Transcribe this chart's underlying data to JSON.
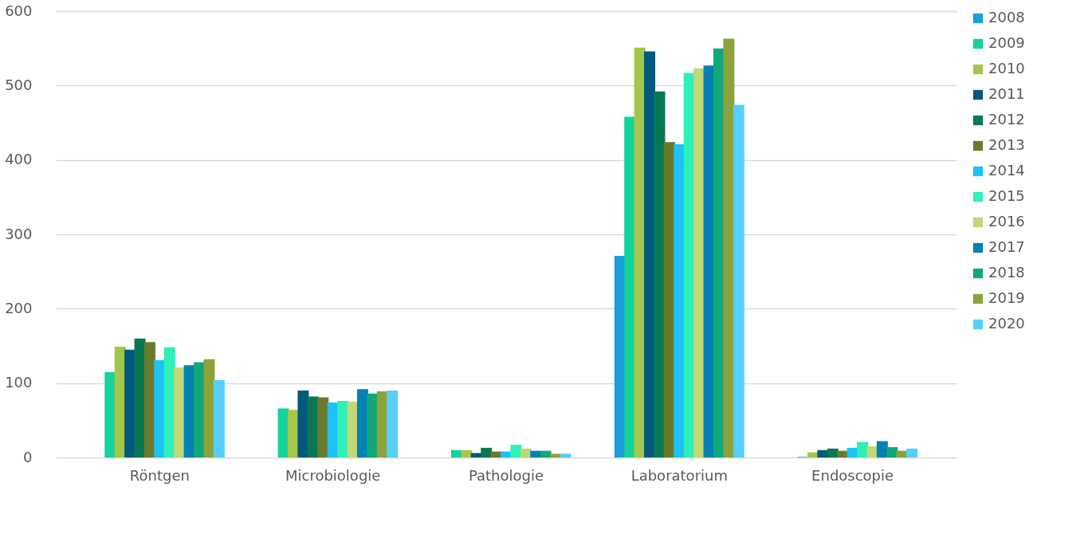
{
  "chart_data": {
    "type": "bar",
    "categories": [
      "Röntgen",
      "Microbiologie",
      "Pathologie",
      "Laboratorium",
      "Endoscopie"
    ],
    "series": [
      {
        "name": "2008",
        "color": "#1a9fd8",
        "values": [
          0,
          0,
          0,
          271,
          0
        ]
      },
      {
        "name": "2009",
        "color": "#14d39b",
        "values": [
          115,
          66,
          10,
          458,
          1
        ]
      },
      {
        "name": "2010",
        "color": "#a5c648",
        "values": [
          149,
          64,
          10,
          551,
          7
        ]
      },
      {
        "name": "2011",
        "color": "#015a7c",
        "values": [
          145,
          90,
          6,
          546,
          10
        ]
      },
      {
        "name": "2012",
        "color": "#087852",
        "values": [
          160,
          82,
          13,
          492,
          12
        ]
      },
      {
        "name": "2013",
        "color": "#6a7a2c",
        "values": [
          155,
          81,
          8,
          424,
          9
        ]
      },
      {
        "name": "2014",
        "color": "#1cc2f8",
        "values": [
          131,
          74,
          8,
          421,
          13
        ]
      },
      {
        "name": "2015",
        "color": "#2ef0b8",
        "values": [
          148,
          76,
          17,
          517,
          21
        ]
      },
      {
        "name": "2016",
        "color": "#c0d877",
        "values": [
          121,
          75,
          12,
          523,
          15
        ]
      },
      {
        "name": "2017",
        "color": "#0181b4",
        "values": [
          124,
          92,
          9,
          527,
          22
        ]
      },
      {
        "name": "2018",
        "color": "#10a87a",
        "values": [
          128,
          86,
          9,
          550,
          14
        ]
      },
      {
        "name": "2019",
        "color": "#8ba33a",
        "values": [
          132,
          89,
          5,
          563,
          9
        ]
      },
      {
        "name": "2020",
        "color": "#56cffa",
        "values": [
          104,
          90,
          5,
          474,
          12
        ]
      }
    ],
    "ylim": [
      0,
      600
    ],
    "yticks": [
      0,
      100,
      200,
      300,
      400,
      500,
      600
    ],
    "grid": "y",
    "legend": "right"
  }
}
